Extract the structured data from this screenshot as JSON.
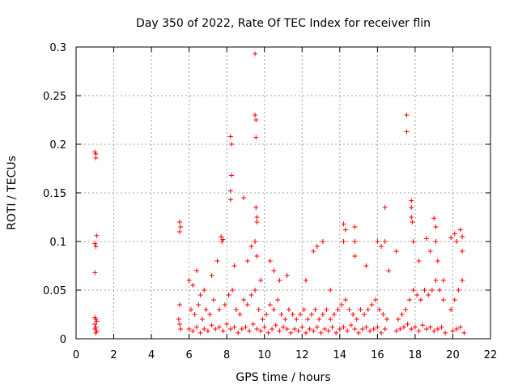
{
  "chart_data": {
    "type": "scatter",
    "title": "Day 350 of 2022, Rate Of TEC Index for receiver flin",
    "xlabel": "GPS time / hours",
    "ylabel": "ROTI / TECUs",
    "xlim": [
      0,
      22
    ],
    "ylim": [
      0,
      0.3
    ],
    "x_ticks": [
      0,
      2,
      4,
      6,
      8,
      10,
      12,
      14,
      16,
      18,
      20,
      22
    ],
    "y_ticks": [
      0,
      0.05,
      0.1,
      0.15,
      0.2,
      0.25,
      0.3
    ],
    "grid": true,
    "marker": "+",
    "color": "#ff0000",
    "series": [
      {
        "points": [
          [
            1.0,
            0.192
          ],
          [
            1.05,
            0.19
          ],
          [
            1.05,
            0.186
          ],
          [
            1.1,
            0.106
          ],
          [
            1.0,
            0.098
          ],
          [
            1.05,
            0.095
          ],
          [
            1.0,
            0.068
          ],
          [
            1.0,
            0.022
          ],
          [
            1.05,
            0.02
          ],
          [
            1.1,
            0.018
          ],
          [
            1.0,
            0.015
          ],
          [
            1.05,
            0.012
          ],
          [
            1.0,
            0.01
          ],
          [
            1.1,
            0.008
          ],
          [
            1.05,
            0.006
          ],
          [
            5.5,
            0.12
          ],
          [
            5.55,
            0.115
          ],
          [
            5.5,
            0.11
          ],
          [
            5.5,
            0.035
          ],
          [
            5.45,
            0.02
          ],
          [
            5.5,
            0.015
          ],
          [
            5.55,
            0.01
          ],
          [
            6.0,
            0.06
          ],
          [
            6.2,
            0.055
          ],
          [
            6.4,
            0.07
          ],
          [
            6.6,
            0.045
          ],
          [
            6.8,
            0.05
          ],
          [
            7.2,
            0.065
          ],
          [
            7.5,
            0.08
          ],
          [
            7.7,
            0.105
          ],
          [
            7.75,
            0.1
          ],
          [
            7.8,
            0.102
          ],
          [
            8.2,
            0.208
          ],
          [
            8.25,
            0.2
          ],
          [
            8.25,
            0.168
          ],
          [
            8.2,
            0.152
          ],
          [
            8.2,
            0.143
          ],
          [
            8.4,
            0.075
          ],
          [
            8.9,
            0.145
          ],
          [
            9.1,
            0.08
          ],
          [
            9.3,
            0.095
          ],
          [
            9.5,
            0.293
          ],
          [
            9.5,
            0.23
          ],
          [
            9.55,
            0.225
          ],
          [
            9.55,
            0.207
          ],
          [
            9.55,
            0.135
          ],
          [
            9.6,
            0.125
          ],
          [
            9.6,
            0.12
          ],
          [
            9.5,
            0.1
          ],
          [
            9.6,
            0.085
          ],
          [
            9.8,
            0.06
          ],
          [
            10.3,
            0.08
          ],
          [
            10.5,
            0.07
          ],
          [
            10.8,
            0.06
          ],
          [
            11.2,
            0.065
          ],
          [
            12.2,
            0.06
          ],
          [
            12.6,
            0.09
          ],
          [
            12.8,
            0.095
          ],
          [
            13.1,
            0.1
          ],
          [
            13.5,
            0.05
          ],
          [
            14.2,
            0.118
          ],
          [
            14.3,
            0.112
          ],
          [
            14.2,
            0.1
          ],
          [
            14.8,
            0.115
          ],
          [
            14.8,
            0.1
          ],
          [
            14.8,
            0.085
          ],
          [
            15.4,
            0.075
          ],
          [
            16.0,
            0.1
          ],
          [
            16.2,
            0.095
          ],
          [
            16.4,
            0.135
          ],
          [
            16.4,
            0.1
          ],
          [
            16.6,
            0.07
          ],
          [
            17.0,
            0.09
          ],
          [
            17.55,
            0.23
          ],
          [
            17.55,
            0.213
          ],
          [
            17.8,
            0.142
          ],
          [
            17.8,
            0.135
          ],
          [
            17.8,
            0.125
          ],
          [
            17.85,
            0.12
          ],
          [
            17.9,
            0.1
          ],
          [
            18.2,
            0.08
          ],
          [
            18.6,
            0.103
          ],
          [
            18.8,
            0.09
          ],
          [
            19.0,
            0.124
          ],
          [
            19.1,
            0.115
          ],
          [
            19.1,
            0.1
          ],
          [
            19.2,
            0.08
          ],
          [
            19.5,
            0.06
          ],
          [
            19.9,
            0.104
          ],
          [
            20.1,
            0.108
          ],
          [
            20.2,
            0.1
          ],
          [
            20.4,
            0.112
          ],
          [
            20.5,
            0.105
          ],
          [
            20.5,
            0.09
          ],
          [
            6.1,
            0.03
          ],
          [
            6.3,
            0.025
          ],
          [
            6.5,
            0.035
          ],
          [
            6.7,
            0.02
          ],
          [
            6.9,
            0.03
          ],
          [
            7.1,
            0.025
          ],
          [
            7.3,
            0.04
          ],
          [
            7.6,
            0.03
          ],
          [
            7.9,
            0.035
          ],
          [
            8.1,
            0.045
          ],
          [
            8.3,
            0.05
          ],
          [
            8.5,
            0.03
          ],
          [
            8.7,
            0.025
          ],
          [
            8.9,
            0.04
          ],
          [
            9.1,
            0.035
          ],
          [
            9.3,
            0.045
          ],
          [
            9.5,
            0.05
          ],
          [
            9.7,
            0.03
          ],
          [
            9.9,
            0.02
          ],
          [
            10.1,
            0.025
          ],
          [
            10.3,
            0.035
          ],
          [
            10.5,
            0.03
          ],
          [
            10.7,
            0.04
          ],
          [
            10.9,
            0.025
          ],
          [
            11.1,
            0.02
          ],
          [
            11.3,
            0.03
          ],
          [
            11.5,
            0.025
          ],
          [
            11.7,
            0.02
          ],
          [
            11.9,
            0.025
          ],
          [
            12.1,
            0.03
          ],
          [
            12.3,
            0.02
          ],
          [
            12.5,
            0.025
          ],
          [
            12.7,
            0.03
          ],
          [
            12.9,
            0.02
          ],
          [
            13.1,
            0.025
          ],
          [
            13.3,
            0.03
          ],
          [
            13.5,
            0.02
          ],
          [
            13.7,
            0.025
          ],
          [
            13.9,
            0.03
          ],
          [
            14.1,
            0.035
          ],
          [
            14.3,
            0.04
          ],
          [
            14.5,
            0.03
          ],
          [
            14.7,
            0.025
          ],
          [
            14.9,
            0.02
          ],
          [
            15.1,
            0.03
          ],
          [
            15.3,
            0.025
          ],
          [
            15.5,
            0.03
          ],
          [
            15.7,
            0.035
          ],
          [
            15.9,
            0.04
          ],
          [
            16.1,
            0.03
          ],
          [
            16.3,
            0.025
          ],
          [
            16.5,
            0.02
          ],
          [
            17.1,
            0.02
          ],
          [
            17.3,
            0.025
          ],
          [
            17.5,
            0.03
          ],
          [
            17.7,
            0.04
          ],
          [
            17.9,
            0.05
          ],
          [
            18.1,
            0.045
          ],
          [
            18.3,
            0.04
          ],
          [
            18.5,
            0.05
          ],
          [
            18.7,
            0.045
          ],
          [
            18.9,
            0.05
          ],
          [
            19.1,
            0.06
          ],
          [
            19.3,
            0.05
          ],
          [
            19.5,
            0.04
          ],
          [
            19.9,
            0.03
          ],
          [
            20.1,
            0.04
          ],
          [
            20.3,
            0.05
          ],
          [
            20.5,
            0.06
          ],
          [
            6.0,
            0.01
          ],
          [
            6.2,
            0.008
          ],
          [
            6.4,
            0.012
          ],
          [
            6.6,
            0.006
          ],
          [
            6.8,
            0.01
          ],
          [
            7.0,
            0.008
          ],
          [
            7.2,
            0.014
          ],
          [
            7.4,
            0.01
          ],
          [
            7.6,
            0.012
          ],
          [
            7.8,
            0.008
          ],
          [
            8.0,
            0.015
          ],
          [
            8.2,
            0.01
          ],
          [
            8.4,
            0.012
          ],
          [
            8.6,
            0.006
          ],
          [
            8.8,
            0.01
          ],
          [
            9.0,
            0.012
          ],
          [
            9.2,
            0.008
          ],
          [
            9.4,
            0.015
          ],
          [
            9.6,
            0.01
          ],
          [
            9.8,
            0.008
          ],
          [
            10.0,
            0.012
          ],
          [
            10.2,
            0.006
          ],
          [
            10.4,
            0.01
          ],
          [
            10.6,
            0.014
          ],
          [
            10.8,
            0.008
          ],
          [
            11.0,
            0.012
          ],
          [
            11.2,
            0.01
          ],
          [
            11.4,
            0.006
          ],
          [
            11.6,
            0.01
          ],
          [
            11.8,
            0.008
          ],
          [
            12.0,
            0.012
          ],
          [
            12.2,
            0.006
          ],
          [
            12.4,
            0.01
          ],
          [
            12.6,
            0.008
          ],
          [
            12.8,
            0.012
          ],
          [
            13.0,
            0.006
          ],
          [
            13.2,
            0.01
          ],
          [
            13.4,
            0.008
          ],
          [
            13.6,
            0.012
          ],
          [
            13.8,
            0.006
          ],
          [
            14.0,
            0.01
          ],
          [
            14.2,
            0.012
          ],
          [
            14.4,
            0.008
          ],
          [
            14.6,
            0.014
          ],
          [
            14.8,
            0.01
          ],
          [
            15.0,
            0.006
          ],
          [
            15.2,
            0.01
          ],
          [
            15.4,
            0.012
          ],
          [
            15.6,
            0.008
          ],
          [
            15.8,
            0.01
          ],
          [
            16.0,
            0.012
          ],
          [
            16.2,
            0.006
          ],
          [
            16.4,
            0.01
          ],
          [
            17.0,
            0.008
          ],
          [
            17.2,
            0.01
          ],
          [
            17.4,
            0.012
          ],
          [
            17.6,
            0.015
          ],
          [
            17.8,
            0.01
          ],
          [
            18.0,
            0.012
          ],
          [
            18.2,
            0.008
          ],
          [
            18.4,
            0.014
          ],
          [
            18.6,
            0.01
          ],
          [
            18.8,
            0.012
          ],
          [
            19.0,
            0.008
          ],
          [
            19.2,
            0.01
          ],
          [
            19.4,
            0.012
          ],
          [
            19.6,
            0.006
          ],
          [
            20.0,
            0.008
          ],
          [
            20.2,
            0.01
          ],
          [
            20.4,
            0.012
          ],
          [
            20.6,
            0.006
          ]
        ]
      }
    ]
  }
}
